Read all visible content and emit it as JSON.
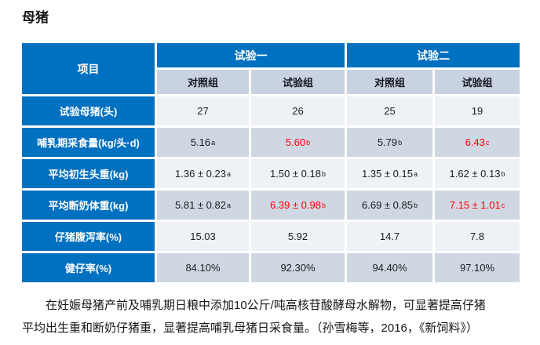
{
  "page": {
    "title": "母猪"
  },
  "table": {
    "header": {
      "item_label": "项目",
      "groups": [
        {
          "label": "试验一"
        },
        {
          "label": "试验二"
        }
      ],
      "subheaders": [
        "对照组",
        "试验组",
        "对照组",
        "试验组"
      ]
    },
    "rows": [
      {
        "label": "试验母猪(头)",
        "cells": [
          {
            "text": "27"
          },
          {
            "text": "26"
          },
          {
            "text": "25"
          },
          {
            "text": "19"
          }
        ]
      },
      {
        "label": "哺乳期采食量(kg/头·d)",
        "cells": [
          {
            "text": "5.16",
            "sup": "a"
          },
          {
            "text": "5.60",
            "sup": "b",
            "red": true
          },
          {
            "text": "5.79",
            "sup": "b"
          },
          {
            "text": "6.43",
            "sup": "c",
            "red": true
          }
        ]
      },
      {
        "label": "平均初生头重(kg)",
        "cells": [
          {
            "text": "1.36 ± 0.23",
            "sup": "a"
          },
          {
            "text": "1.50 ± 0.18",
            "sup": "b"
          },
          {
            "text": "1.35 ± 0.15",
            "sup": "a"
          },
          {
            "text": "1.62 ± 0.13",
            "sup": "b"
          }
        ]
      },
      {
        "label": "平均断奶体重(kg)",
        "cells": [
          {
            "text": "5.81 ± 0.82",
            "sup": "a"
          },
          {
            "text": "6.39 ± 0.98",
            "sup": "b",
            "red": true
          },
          {
            "text": "6.69 ± 0.85",
            "sup": "b"
          },
          {
            "text": "7.15 ± 1.01",
            "sup": "c",
            "red": true
          }
        ]
      },
      {
        "label": "仔猪腹泻率(%)",
        "cells": [
          {
            "text": "15.03"
          },
          {
            "text": "5.92"
          },
          {
            "text": "14.7"
          },
          {
            "text": "7.8"
          }
        ]
      },
      {
        "label": "健仔率(%)",
        "cells": [
          {
            "text": "84.10%"
          },
          {
            "text": "92.30%"
          },
          {
            "text": "94.40%"
          },
          {
            "text": "97.10%"
          }
        ]
      }
    ]
  },
  "footer": {
    "lines": [
      "在妊娠母猪产前及哺乳期日粮中添加10公斤/吨高核苷酸酵母水解物，可显著提高仔猪",
      "平均出生重和断奶仔猪重，显著提高哺乳母猪日采食量。（孙雪梅等，2016，《新饲料》）"
    ]
  },
  "colors": {
    "header_blue": "#0070C0",
    "subheader_bg": "#C8D2E1",
    "row_shade_bg": "#CFD7E3",
    "row_plain_bg": "#EEF1F6",
    "highlight_red": "#FF0000"
  }
}
